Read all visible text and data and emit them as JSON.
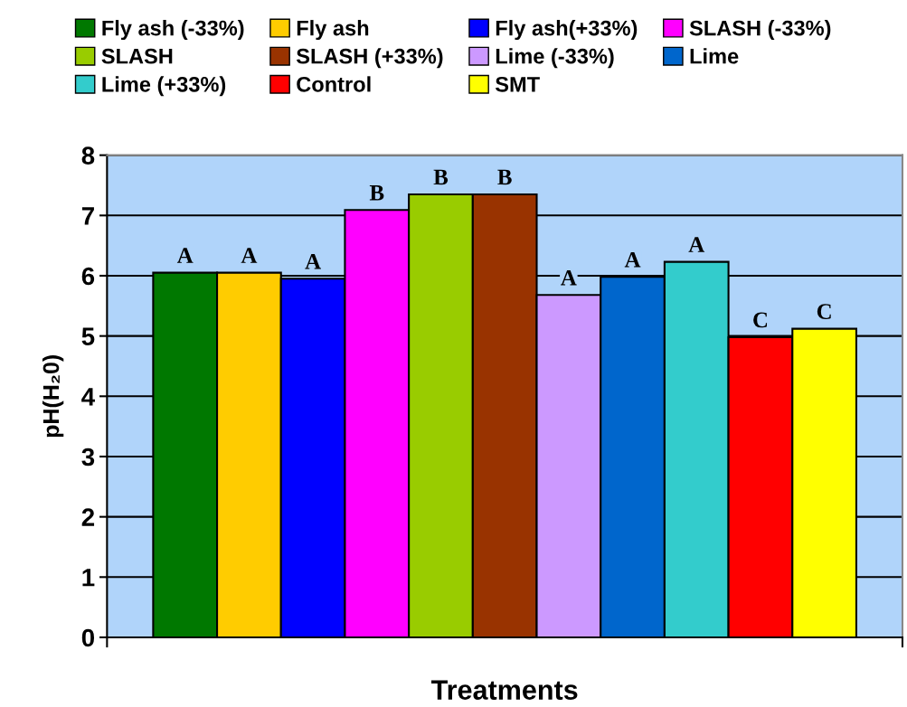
{
  "chart_data": {
    "type": "bar",
    "xlabel": "Treatments",
    "ylabel": "pH(H₂0)",
    "categories": [
      null
    ],
    "series": [
      {
        "name": "Fly ash (-33%)",
        "color": "#007800",
        "values": [
          6.05
        ]
      },
      {
        "name": "Fly ash",
        "color": "#ffcc00",
        "values": [
          6.05
        ]
      },
      {
        "name": "Fly ash(+33%)",
        "color": "#0000ff",
        "values": [
          5.95
        ]
      },
      {
        "name": "SLASH (-33%)",
        "color": "#ff00ff",
        "values": [
          7.09
        ]
      },
      {
        "name": "SLASH",
        "color": "#99cc00",
        "values": [
          7.35
        ]
      },
      {
        "name": "SLASH (+33%)",
        "color": "#993300",
        "values": [
          7.35
        ]
      },
      {
        "name": "Lime (-33%)",
        "color": "#cc99ff",
        "values": [
          5.68
        ]
      },
      {
        "name": "Lime",
        "color": "#0066cc",
        "values": [
          5.98
        ]
      },
      {
        "name": "Lime (+33%)",
        "color": "#33cccc",
        "values": [
          6.23
        ]
      },
      {
        "name": "Control",
        "color": "#ff0000",
        "values": [
          4.98
        ]
      },
      {
        "name": "SMT",
        "color": "#ffff00",
        "values": [
          5.12
        ]
      }
    ],
    "annotations": [
      {
        "text": "A",
        "y": 6.05
      },
      {
        "text": "A",
        "y": 6.05
      },
      {
        "text": "A",
        "y": 5.95
      },
      {
        "text": "B",
        "y": 7.09
      },
      {
        "text": "B",
        "y": 7.35
      },
      {
        "text": "B",
        "y": 7.35
      },
      {
        "text": "A",
        "y": 5.68
      },
      {
        "text": "A",
        "y": 5.98
      },
      {
        "text": "A",
        "y": 6.23
      },
      {
        "text": "C",
        "y": 4.98
      },
      {
        "text": "C",
        "y": 5.12
      }
    ],
    "ylim": [
      0,
      8
    ],
    "yticks": [
      0,
      1,
      2,
      3,
      4,
      5,
      6,
      7,
      8
    ],
    "grid": "y",
    "legend": "top"
  }
}
